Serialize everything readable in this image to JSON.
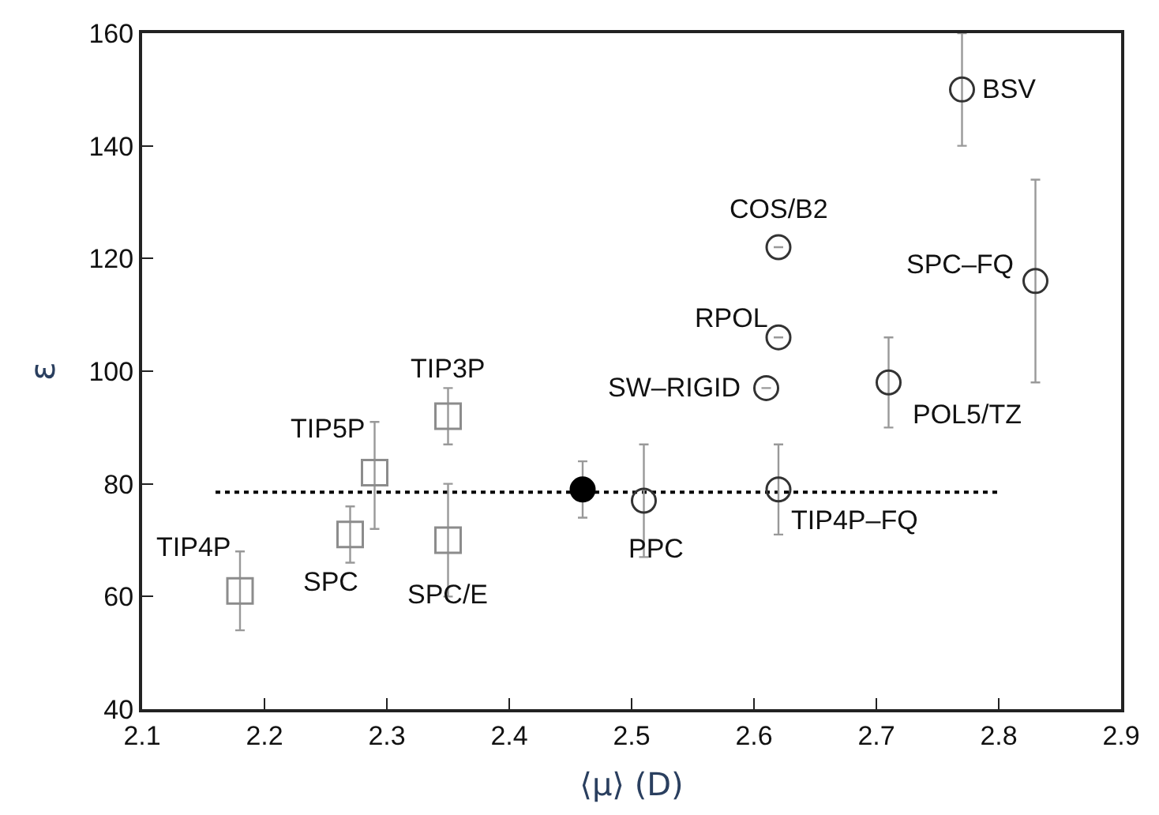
{
  "chart_data": {
    "type": "scatter",
    "xlabel": "⟨μ⟩ (D)",
    "ylabel": "ε",
    "xlim": [
      2.1,
      2.9
    ],
    "xticks": [
      2.1,
      2.2,
      2.3,
      2.4,
      2.5,
      2.6,
      2.7,
      2.8,
      2.9
    ],
    "ylim": [
      40,
      160
    ],
    "yticks": [
      40,
      60,
      80,
      100,
      120,
      140,
      160
    ],
    "series": [
      {
        "type": "line",
        "marker": "none",
        "line_style": "dotted",
        "color": "#000000",
        "x": [
          2.16,
          2.8
        ],
        "values": [
          78.5,
          78.5
        ]
      },
      {
        "marker": "square",
        "color": "#8c8c8c",
        "x": [
          2.18,
          2.27,
          2.29,
          2.35,
          2.35
        ],
        "values": [
          61,
          71,
          82,
          92,
          70
        ],
        "errors": [
          [
            54,
            68
          ],
          [
            66,
            76
          ],
          [
            72,
            91
          ],
          [
            87,
            97
          ],
          [
            60,
            80
          ]
        ]
      },
      {
        "marker": "circle",
        "color": "#000000",
        "x": [
          2.46
        ],
        "values": [
          79
        ],
        "errors": [
          [
            74,
            84
          ]
        ]
      },
      {
        "marker": "circle",
        "color": "#333333",
        "x": [
          2.51,
          2.61,
          2.62,
          2.62,
          2.62,
          2.71,
          2.77,
          2.83
        ],
        "values": [
          77,
          97,
          122,
          106,
          79,
          98,
          150,
          116
        ],
        "errors": [
          [
            67,
            87
          ],
          null,
          null,
          null,
          [
            71,
            87
          ],
          [
            90,
            106
          ],
          [
            140,
            160
          ],
          [
            98,
            134
          ]
        ]
      }
    ],
    "annotations": [
      {
        "text": "TIP4P",
        "x": 2.18,
        "y": 61
      },
      {
        "text": "SPC",
        "x": 2.27,
        "y": 71
      },
      {
        "text": "TIP5P",
        "x": 2.29,
        "y": 82
      },
      {
        "text": "TIP3P",
        "x": 2.35,
        "y": 92
      },
      {
        "text": "SPC/E",
        "x": 2.35,
        "y": 70
      },
      {
        "text": "PPC",
        "x": 2.51,
        "y": 77
      },
      {
        "text": "SW–RIGID",
        "x": 2.61,
        "y": 97
      },
      {
        "text": "COS/B2",
        "x": 2.62,
        "y": 122
      },
      {
        "text": "RPOL",
        "x": 2.62,
        "y": 106
      },
      {
        "text": "TIP4P–FQ",
        "x": 2.62,
        "y": 79
      },
      {
        "text": "POL5/TZ",
        "x": 2.71,
        "y": 98
      },
      {
        "text": "BSV",
        "x": 2.77,
        "y": 150
      },
      {
        "text": "SPC–FQ",
        "x": 2.83,
        "y": 116
      }
    ]
  }
}
